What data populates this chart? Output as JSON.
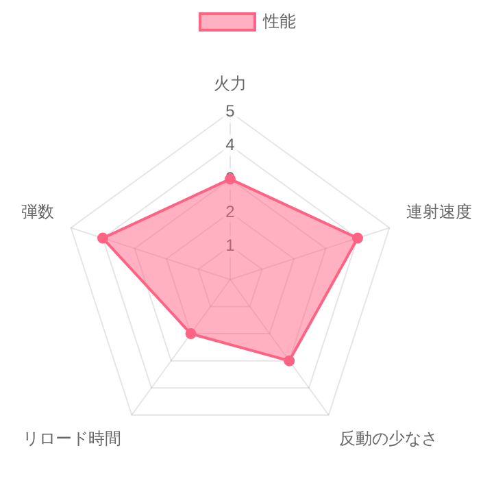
{
  "chart_data": {
    "type": "radar",
    "categories": [
      "火力",
      "連射速度",
      "反動の少なさ",
      "リロード時間",
      "弾数"
    ],
    "series": [
      {
        "name": "性能",
        "color": "#ff6384",
        "values": [
          3,
          4,
          3,
          2,
          4
        ]
      }
    ],
    "ylim": [
      0,
      5
    ],
    "yticks": [
      1,
      2,
      3,
      4,
      5
    ],
    "grid": true,
    "legend": "top",
    "marker": "circle"
  }
}
